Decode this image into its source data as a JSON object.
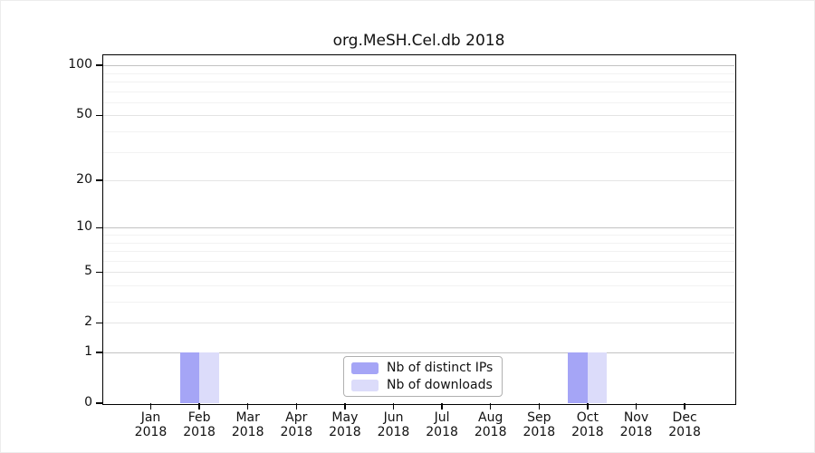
{
  "chart_data": {
    "type": "bar",
    "title": "org.MeSH.Cel.db 2018",
    "categories": [
      "Jan",
      "Feb",
      "Mar",
      "Apr",
      "May",
      "Jun",
      "Jul",
      "Aug",
      "Sep",
      "Oct",
      "Nov",
      "Dec"
    ],
    "x_year": "2018",
    "series": [
      {
        "name": "Nb of distinct IPs",
        "color": "#a5a5f6",
        "values": [
          0,
          1,
          0,
          0,
          0,
          0,
          0,
          0,
          0,
          1,
          0,
          0
        ]
      },
      {
        "name": "Nb of downloads",
        "color": "#dcdcfa",
        "values": [
          0,
          1,
          0,
          0,
          0,
          0,
          0,
          0,
          0,
          1,
          0,
          0
        ]
      }
    ],
    "yaxis": {
      "scale": "log1p",
      "ticks": [
        0,
        1,
        2,
        5,
        10,
        20,
        50,
        100
      ],
      "minor_ticks": [
        3,
        4,
        6,
        7,
        8,
        9,
        30,
        40,
        60,
        70,
        80,
        90
      ],
      "top": 115
    },
    "xlabel": "",
    "ylabel": "",
    "grid": true,
    "legend": {
      "position": "bottom-center"
    }
  },
  "colors": {
    "axis": "#000000",
    "text": "#111111",
    "grid_decade": "#c2c2c2",
    "grid_major": "#e4e4e4",
    "grid_minor": "#f2f2f2",
    "background": "#ffffff"
  }
}
